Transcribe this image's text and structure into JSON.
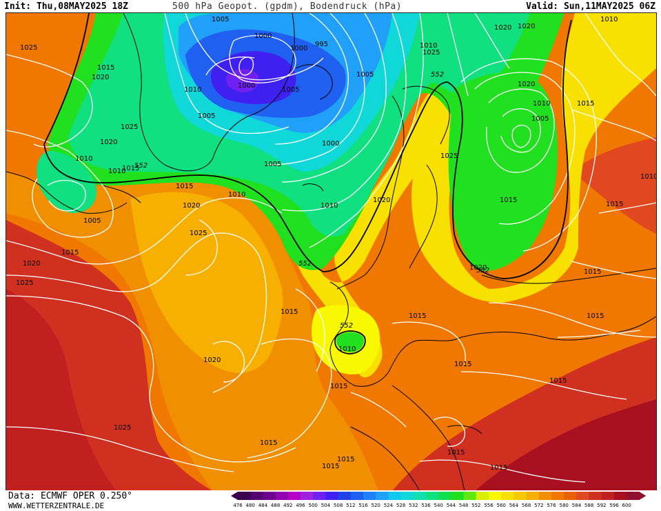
{
  "header": {
    "init": "Init: Thu,08MAY2025 18Z",
    "title": "500 hPa Geopot. (gpdm), Bodendruck (hPa)",
    "valid": "Valid: Sun,11MAY2025 06Z"
  },
  "footer": {
    "data_source": "Data: ECMWF OPER 0.250°",
    "website": "WWW.WETTERZENTRALE.DE"
  },
  "colors": {
    "c476": "#3a0050",
    "c480": "#55006e",
    "c484": "#6e0090",
    "c488": "#9000b0",
    "c492": "#b400c8",
    "c496": "#a020e0",
    "c500": "#7020f0",
    "c504": "#4020f0",
    "c508": "#2040e8",
    "c512": "#2060f0",
    "c516": "#2080f8",
    "c520": "#20a0f8",
    "c524": "#10c8f0",
    "c528": "#10d8d8",
    "c532": "#10e0b0",
    "c536": "#10e080",
    "c540": "#10e050",
    "c544": "#20e020",
    "c548": "#60e810",
    "c552": "#d8f000",
    "c556": "#f8f800",
    "c560": "#f8e000",
    "c564": "#f8c800",
    "c568": "#f8b000",
    "c572": "#f09000",
    "c576": "#f07800",
    "c580": "#e86000",
    "c584": "#e04820",
    "c588": "#d03020",
    "c592": "#c02020",
    "c596": "#a81020",
    "c600": "#901030",
    "isobar": "#ffffff",
    "coast": "#000000"
  },
  "colorbar_labels": [
    "476",
    "480",
    "484",
    "488",
    "492",
    "496",
    "500",
    "504",
    "508",
    "512",
    "516",
    "520",
    "524",
    "528",
    "532",
    "536",
    "540",
    "544",
    "548",
    "552",
    "556",
    "560",
    "564",
    "568",
    "572",
    "576",
    "580",
    "584",
    "588",
    "592",
    "596",
    "600"
  ],
  "pressure_labels": [
    {
      "text": "1025"
    },
    {
      "text": "1005"
    },
    {
      "text": "1000"
    },
    {
      "text": "995"
    },
    {
      "text": "1020"
    },
    {
      "text": "1025"
    },
    {
      "text": "1010"
    },
    {
      "text": "1015"
    },
    {
      "text": "1020"
    },
    {
      "text": "1000"
    },
    {
      "text": "1010"
    },
    {
      "text": "1005"
    },
    {
      "text": "1005"
    },
    {
      "text": "1005"
    },
    {
      "text": "1015"
    },
    {
      "text": "1020"
    },
    {
      "text": "1025"
    },
    {
      "text": "1020"
    },
    {
      "text": "1000"
    },
    {
      "text": "1010"
    },
    {
      "text": "1015"
    },
    {
      "text": "1005"
    },
    {
      "text": "1015"
    },
    {
      "text": "1020"
    },
    {
      "text": "1010"
    },
    {
      "text": "1010"
    },
    {
      "text": "1005"
    },
    {
      "text": "1000"
    },
    {
      "text": "1005"
    },
    {
      "text": "1025"
    },
    {
      "text": "1010"
    },
    {
      "text": "1020"
    },
    {
      "text": "1020"
    },
    {
      "text": "1015"
    },
    {
      "text": "1015"
    },
    {
      "text": "1010"
    },
    {
      "text": "1015"
    },
    {
      "text": "1025"
    },
    {
      "text": "1015"
    },
    {
      "text": "1020"
    },
    {
      "text": "1025"
    },
    {
      "text": "1020"
    },
    {
      "text": "1015"
    },
    {
      "text": "1010"
    },
    {
      "text": "1015"
    },
    {
      "text": "1015"
    },
    {
      "text": "1015"
    },
    {
      "text": "1020"
    },
    {
      "text": "1025"
    },
    {
      "text": "1015"
    },
    {
      "text": "1015"
    },
    {
      "text": "1015"
    },
    {
      "text": "1015"
    },
    {
      "text": "1015"
    },
    {
      "text": "1015"
    },
    {
      "text": "1010"
    },
    {
      "text": "1010"
    },
    {
      "text": "1015"
    }
  ],
  "geopot_labels": [
    {
      "text": "552"
    },
    {
      "text": "552"
    },
    {
      "text": "552"
    },
    {
      "text": "552"
    },
    {
      "text": "552"
    }
  ]
}
